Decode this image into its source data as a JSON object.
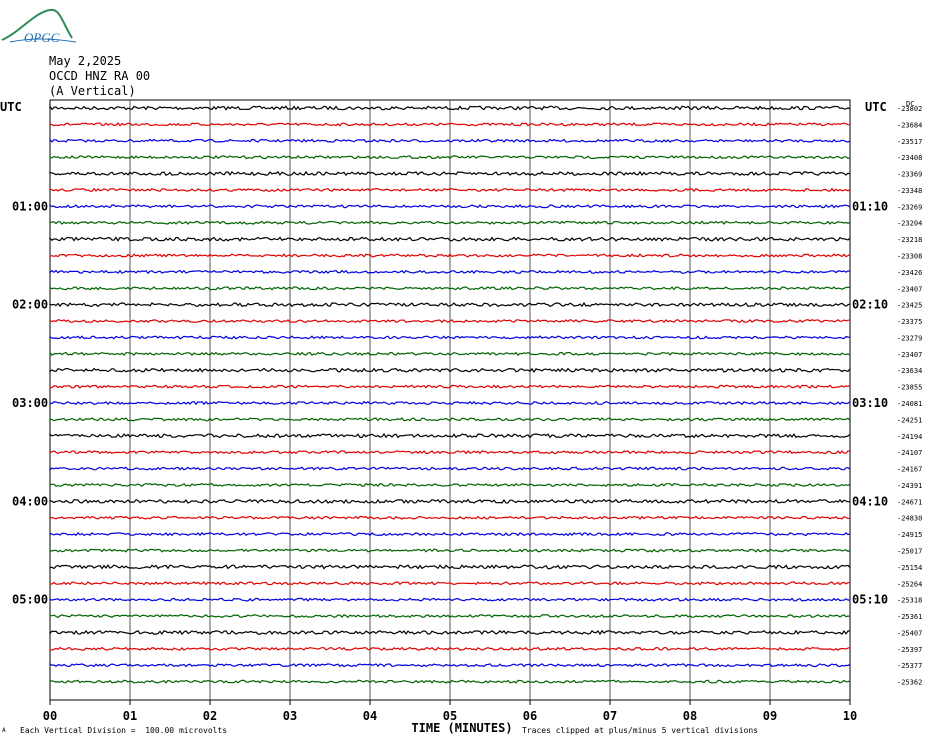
{
  "logo": {
    "text": "OPGC",
    "icon": "ofgc-logo-icon",
    "color": "#2e8b57",
    "text_color": "#1f6fb2"
  },
  "header": {
    "date": "May 2,2025",
    "station": "OCCD HNZ RA 00",
    "component": "(A Vertical)"
  },
  "utc_left": "UTC",
  "utc_right": "UTC",
  "dc_header": "DC",
  "footer": {
    "vertical_division": "Each Vertical Division =  100.00 microvolts",
    "clip_note": "Traces clipped at plus/minus 5 vertical divisions",
    "small_mark": "A"
  },
  "chart_data": {
    "type": "line",
    "title": "",
    "xlabel": "TIME (MINUTES)",
    "ylabel": "",
    "x_ticks": [
      "00",
      "01",
      "02",
      "03",
      "04",
      "05",
      "06",
      "07",
      "08",
      "09",
      "10"
    ],
    "xlim": [
      0,
      10
    ],
    "grid": true,
    "trace_colors": [
      "#000000",
      "#e00000",
      "#0000e0",
      "#006400"
    ],
    "left_time_labels": [
      {
        "trace": 6,
        "label": "01:00"
      },
      {
        "trace": 12,
        "label": "02:00"
      },
      {
        "trace": 18,
        "label": "03:00"
      },
      {
        "trace": 24,
        "label": "04:00"
      },
      {
        "trace": 30,
        "label": "05:00"
      }
    ],
    "right_time_labels": [
      {
        "trace": 6,
        "label": "01:10"
      },
      {
        "trace": 12,
        "label": "02:10"
      },
      {
        "trace": 18,
        "label": "03:10"
      },
      {
        "trace": 24,
        "label": "04:10"
      },
      {
        "trace": 30,
        "label": "05:10"
      }
    ],
    "dc_offsets": [
      "-23802",
      "-23684",
      "-23517",
      "-23408",
      "-23369",
      "-23348",
      "-23269",
      "-23204",
      "-23218",
      "-23308",
      "-23426",
      "-23407",
      "-23425",
      "-23375",
      "-23279",
      "-23407",
      "-23634",
      "-23855",
      "-24081",
      "-24251",
      "-24194",
      "-24107",
      "-24167",
      "-24391",
      "-24671",
      "-24830",
      "-24915",
      "-25017",
      "-25154",
      "-25264",
      "-25318",
      "-25361",
      "-25407",
      "-25397",
      "-25377",
      "-25362"
    ]
  }
}
